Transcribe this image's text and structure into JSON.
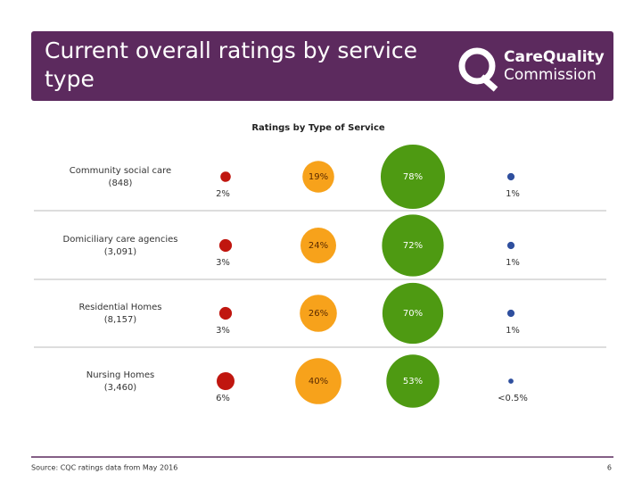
{
  "header": {
    "title_lines": [
      "Current overall ratings by service",
      "type"
    ],
    "logo_lines": [
      "CareQuality",
      "Commission"
    ]
  },
  "chart_data": {
    "type": "bubble-grid",
    "title": "Ratings by Type of Service",
    "categories": [
      "Community social care",
      "Domiciliary care agencies",
      "Residential Homes",
      "Nursing Homes"
    ],
    "category_counts": [
      "(848)",
      "(3,091)",
      "(8,157)",
      "(3,460)"
    ],
    "series": [
      {
        "color": "#c0160f",
        "values": [
          2,
          3,
          3,
          6
        ],
        "value_labels": [
          "2%",
          "3%",
          "3%",
          "6%"
        ]
      },
      {
        "color": "#f7a21b",
        "values": [
          19,
          24,
          26,
          40
        ],
        "value_labels": [
          "19%",
          "24%",
          "26%",
          "40%"
        ]
      },
      {
        "color": "#4e9a12",
        "values": [
          78,
          72,
          70,
          53
        ],
        "value_labels": [
          "78%",
          "72%",
          "70%",
          "53%"
        ]
      },
      {
        "color": "#2f4f9e",
        "values": [
          1,
          1,
          1,
          0.5
        ],
        "value_labels": [
          "1%",
          "1%",
          "1%",
          "<0.5%"
        ]
      }
    ]
  },
  "footer": {
    "source": "Source: CQC ratings data from May 2016",
    "page": "6"
  }
}
